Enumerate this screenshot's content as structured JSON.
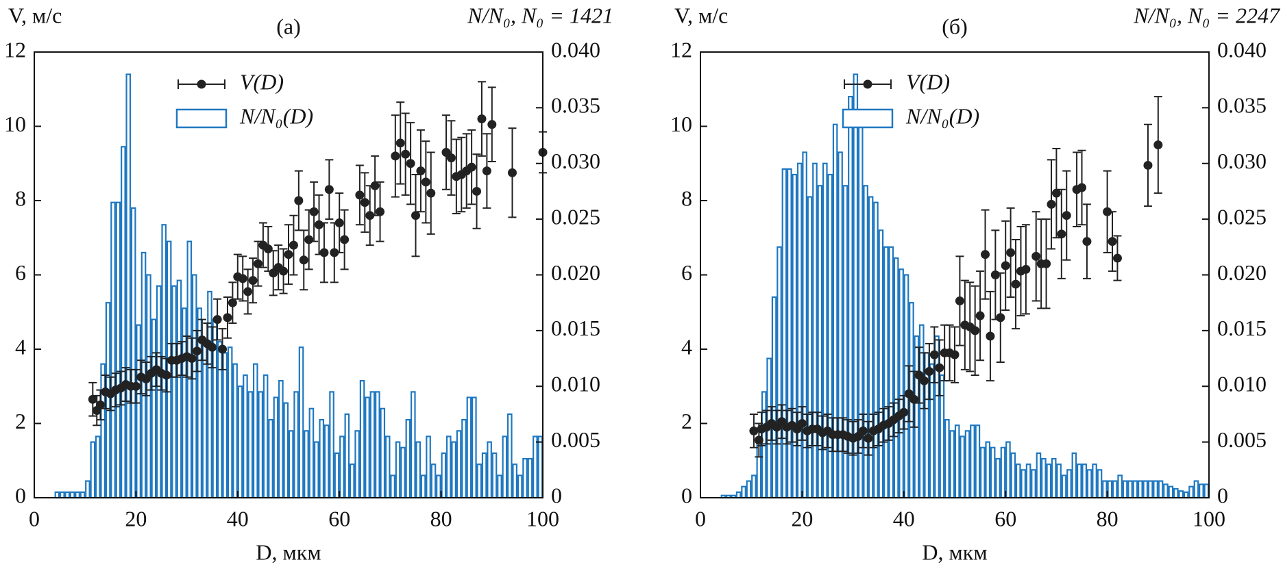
{
  "chart_data": [
    {
      "type": "combo",
      "title": "(а)",
      "annotation": "N/N₀, N₀ = 1421",
      "ylabel": "V, м/с",
      "xlabel": "D, мкм",
      "xlim": [
        0,
        100
      ],
      "xticks": [
        0,
        20,
        40,
        60,
        80,
        100
      ],
      "ylim": [
        0,
        12
      ],
      "yticks": [
        0,
        2,
        4,
        6,
        8,
        10,
        12
      ],
      "y2lim": [
        0,
        0.04
      ],
      "y2ticks": [
        0,
        0.005,
        {
          "value": 0.01,
          "label": "0.010"
        },
        0.015,
        {
          "value": 0.02,
          "label": "0.020"
        },
        0.025,
        {
          "value": 0.03,
          "label": "0.030"
        },
        0.035,
        {
          "value": 0.04,
          "label": "0.040"
        }
      ],
      "series": [
        {
          "name": "V(D)",
          "type": "errorbar",
          "color": "#222222",
          "x": [
            11.5,
            12.3,
            13,
            14,
            15,
            16,
            17,
            18,
            19,
            20,
            21,
            22,
            23,
            24,
            25,
            26,
            27,
            28,
            29,
            30,
            31,
            32,
            33,
            34,
            35,
            36,
            37,
            38,
            39,
            40,
            41,
            42,
            43,
            44,
            45,
            46,
            47,
            48,
            49,
            50,
            51,
            52,
            53,
            54,
            55,
            56,
            57,
            58,
            59,
            60,
            61,
            64,
            65,
            66,
            67,
            68,
            71,
            72,
            73,
            74,
            75,
            76,
            77,
            78,
            81,
            82,
            83,
            84,
            85,
            86,
            87,
            88,
            89,
            90,
            94,
            100
          ],
          "values": [
            2.65,
            2.35,
            2.5,
            2.85,
            2.8,
            2.9,
            2.95,
            3.05,
            3.0,
            3.0,
            3.25,
            3.2,
            3.35,
            3.45,
            3.35,
            3.3,
            3.7,
            3.7,
            3.75,
            3.8,
            3.75,
            3.95,
            4.25,
            4.15,
            4.05,
            4.8,
            4.0,
            4.85,
            5.25,
            5.95,
            5.9,
            5.55,
            5.85,
            6.3,
            6.8,
            6.7,
            6.05,
            6.2,
            6.1,
            6.55,
            6.8,
            8.0,
            6.4,
            6.95,
            7.7,
            7.35,
            6.6,
            8.3,
            6.6,
            7.4,
            6.95,
            8.15,
            7.95,
            7.6,
            8.4,
            7.7,
            9.2,
            9.55,
            9.25,
            9.0,
            7.6,
            8.8,
            8.5,
            8.2,
            9.3,
            9.15,
            8.65,
            8.7,
            8.8,
            8.9,
            8.25,
            10.2,
            8.8,
            10.05,
            8.75,
            9.3
          ],
          "errors": [
            0.45,
            0.4,
            0.4,
            0.45,
            0.45,
            0.45,
            0.45,
            0.45,
            0.45,
            0.45,
            0.45,
            0.45,
            0.45,
            0.45,
            0.45,
            0.45,
            0.45,
            0.45,
            0.45,
            0.55,
            0.55,
            0.55,
            0.55,
            0.55,
            0.55,
            0.55,
            0.55,
            0.55,
            0.55,
            0.6,
            0.6,
            0.6,
            0.6,
            0.6,
            0.6,
            0.6,
            0.6,
            0.6,
            0.6,
            0.8,
            0.8,
            0.8,
            0.8,
            0.8,
            0.8,
            0.8,
            0.8,
            0.8,
            0.8,
            0.8,
            0.8,
            0.8,
            0.8,
            0.8,
            0.8,
            0.8,
            1.1,
            1.1,
            1.1,
            1.1,
            1.1,
            1.1,
            1.1,
            1.1,
            1.0,
            1.0,
            1.0,
            1.0,
            1.0,
            1.0,
            1.0,
            1.0,
            1.0,
            1.0,
            1.2,
            0.55
          ]
        },
        {
          "name": "N/N₀(D)",
          "type": "histogram",
          "axis": "y2",
          "color": "#1f78c1",
          "bins": [
            4,
            5,
            6,
            7,
            8,
            9,
            10,
            11,
            12,
            13,
            14,
            15,
            16,
            17,
            18,
            19,
            20,
            21,
            22,
            23,
            24,
            25,
            26,
            27,
            28,
            29,
            30,
            31,
            32,
            33,
            34,
            35,
            36,
            37,
            38,
            39,
            40,
            41,
            42,
            43,
            44,
            45,
            46,
            47,
            48,
            49,
            50,
            51,
            52,
            53,
            54,
            55,
            56,
            57,
            58,
            59,
            60,
            61,
            62,
            63,
            64,
            65,
            66,
            67,
            68,
            69,
            70,
            71,
            72,
            73,
            74,
            75,
            76,
            77,
            78,
            79,
            80,
            81,
            82,
            83,
            84,
            85,
            86,
            87,
            88,
            89,
            90,
            91,
            92,
            93,
            94,
            95,
            96,
            97,
            98,
            99,
            100
          ],
          "values": [
            0.0005,
            0.0005,
            0.0005,
            0.0005,
            0.0005,
            0.0005,
            0.0015,
            0.005,
            0.0055,
            0.012,
            0.0175,
            0.0265,
            0.0265,
            0.0315,
            0.038,
            0.026,
            0.0155,
            0.022,
            0.02,
            0.016,
            0.019,
            0.0245,
            0.023,
            0.019,
            0.0195,
            0.017,
            0.023,
            0.02,
            0.017,
            0.014,
            0.0185,
            0.016,
            0.014,
            0.013,
            0.0135,
            0.012,
            0.01,
            0.011,
            0.0095,
            0.012,
            0.0095,
            0.011,
            0.007,
            0.009,
            0.0105,
            0.0085,
            0.006,
            0.0095,
            0.0135,
            0.006,
            0.008,
            0.005,
            0.007,
            0.0065,
            0.0095,
            0.004,
            0.0055,
            0.0075,
            0.003,
            0.006,
            0.0105,
            0.009,
            0.0095,
            0.0095,
            0.008,
            0.0055,
            0.002,
            0.005,
            0.0045,
            0.007,
            0.0095,
            0.005,
            0.002,
            0.0055,
            0.003,
            0.002,
            0.004,
            0.0055,
            0.005,
            0.006,
            0.007,
            0.009,
            0.009,
            0.003,
            0.004,
            0.005,
            0.004,
            0.002,
            0.0055,
            0.0075,
            0.003,
            0.002,
            0.0035,
            0.0035,
            0.0055,
            0.0055
          ]
        }
      ]
    },
    {
      "type": "combo",
      "title": "(б)",
      "annotation": "N/N₀, N₀ = 2247",
      "ylabel": "V, м/с",
      "xlabel": "D, мкм",
      "xlim": [
        0,
        100
      ],
      "xticks": [
        0,
        20,
        40,
        60,
        80,
        100
      ],
      "ylim": [
        0,
        12
      ],
      "yticks": [
        0,
        2,
        4,
        6,
        8,
        10,
        12
      ],
      "y2lim": [
        0,
        0.04
      ],
      "y2ticks": [
        0,
        0.005,
        {
          "value": 0.01,
          "label": "0.010"
        },
        0.015,
        {
          "value": 0.02,
          "label": "0.020"
        },
        0.025,
        {
          "value": 0.03,
          "label": "0.030"
        },
        0.035,
        {
          "value": 0.04,
          "label": "0.040"
        }
      ],
      "series": [
        {
          "name": "V(D)",
          "type": "errorbar",
          "color": "#222222",
          "x": [
            10.5,
            11.5,
            12,
            13,
            14,
            15,
            16,
            17,
            18,
            19,
            20,
            21,
            22,
            23,
            24,
            25,
            26,
            27,
            28,
            29,
            30,
            31,
            32,
            33,
            34,
            35,
            36,
            37,
            38,
            39,
            40,
            41,
            42,
            43,
            44,
            45,
            46,
            47,
            48,
            49,
            50,
            51,
            52,
            53,
            54,
            55,
            56,
            57,
            58,
            59,
            60,
            61,
            62,
            63,
            64,
            66,
            67,
            68,
            69,
            70,
            71,
            72,
            74,
            75,
            76,
            80,
            81,
            82,
            88,
            90
          ],
          "values": [
            1.8,
            1.55,
            1.85,
            1.9,
            2.0,
            1.9,
            2.05,
            1.9,
            1.95,
            1.85,
            2.0,
            1.8,
            1.85,
            1.85,
            1.75,
            1.8,
            1.7,
            1.7,
            1.7,
            1.65,
            1.6,
            1.65,
            1.8,
            1.6,
            1.8,
            1.85,
            1.95,
            2.0,
            2.1,
            2.2,
            2.3,
            2.8,
            2.65,
            3.3,
            3.15,
            3.4,
            3.85,
            3.5,
            3.9,
            3.9,
            3.85,
            5.3,
            4.65,
            4.6,
            4.5,
            4.9,
            6.55,
            4.35,
            6.0,
            4.85,
            6.25,
            6.6,
            5.75,
            6.1,
            6.15,
            6.5,
            6.3,
            6.3,
            7.9,
            8.2,
            7.1,
            7.6,
            8.3,
            8.35,
            6.9,
            7.7,
            6.9,
            6.45,
            8.95,
            9.5
          ],
          "errors": [
            0.45,
            0.45,
            0.45,
            0.45,
            0.45,
            0.45,
            0.45,
            0.45,
            0.45,
            0.45,
            0.45,
            0.45,
            0.45,
            0.45,
            0.45,
            0.45,
            0.45,
            0.45,
            0.45,
            0.45,
            0.45,
            0.45,
            0.45,
            0.45,
            0.45,
            0.45,
            0.45,
            0.45,
            0.45,
            0.45,
            0.45,
            0.75,
            0.75,
            0.75,
            0.75,
            0.75,
            0.75,
            0.75,
            0.75,
            0.75,
            0.75,
            1.2,
            1.2,
            1.2,
            1.2,
            1.2,
            1.2,
            1.2,
            1.2,
            1.2,
            1.2,
            1.2,
            1.2,
            1.2,
            1.2,
            1.2,
            1.2,
            1.2,
            1.2,
            1.2,
            1.2,
            1.2,
            1.0,
            1.0,
            1.0,
            1.1,
            0.8,
            0.6,
            1.1,
            1.3
          ]
        },
        {
          "name": "N/N₀(D)",
          "type": "histogram",
          "axis": "y2",
          "color": "#1f78c1",
          "bins": [
            4,
            5,
            6,
            7,
            8,
            9,
            10,
            11,
            12,
            13,
            14,
            15,
            16,
            17,
            18,
            19,
            20,
            21,
            22,
            23,
            24,
            25,
            26,
            27,
            28,
            29,
            30,
            31,
            32,
            33,
            34,
            35,
            36,
            37,
            38,
            39,
            40,
            41,
            42,
            43,
            44,
            45,
            46,
            47,
            48,
            49,
            50,
            51,
            52,
            53,
            54,
            55,
            56,
            57,
            58,
            59,
            60,
            61,
            62,
            63,
            64,
            65,
            66,
            67,
            68,
            69,
            70,
            71,
            72,
            73,
            74,
            75,
            76,
            77,
            78,
            79,
            80,
            81,
            82,
            83,
            84,
            85,
            86,
            87,
            88,
            89,
            90,
            91,
            92,
            93,
            94,
            95,
            96,
            97,
            98,
            99,
            100
          ],
          "values": [
            0.0002,
            0.0002,
            0.0002,
            0.0005,
            0.001,
            0.0015,
            0.002,
            0.005,
            0.0095,
            0.0125,
            0.018,
            0.0225,
            0.0295,
            0.0295,
            0.029,
            0.03,
            0.031,
            0.027,
            0.03,
            0.028,
            0.03,
            0.029,
            0.0335,
            0.031,
            0.028,
            0.036,
            0.038,
            0.034,
            0.028,
            0.027,
            0.0265,
            0.024,
            0.0225,
            0.0225,
            0.0215,
            0.0205,
            0.02,
            0.0175,
            0.0145,
            0.0155,
            0.013,
            0.012,
            0.0145,
            0.011,
            0.007,
            0.006,
            0.0065,
            0.0055,
            0.006,
            0.0065,
            0.0065,
            0.0045,
            0.005,
            0.0045,
            0.0035,
            0.0045,
            0.005,
            0.004,
            0.003,
            0.0025,
            0.003,
            0.0025,
            0.004,
            0.0035,
            0.003,
            0.0035,
            0.003,
            0.002,
            0.0025,
            0.004,
            0.003,
            0.003,
            0.0025,
            0.003,
            0.0025,
            0.0015,
            0.0015,
            0.0015,
            0.002,
            0.0015,
            0.0015,
            0.0015,
            0.0015,
            0.0015,
            0.0015,
            0.0015,
            0.0015,
            0.0012,
            0.001,
            0.0008,
            0.0006,
            0.0005,
            0.001,
            0.0015,
            0.0012,
            0.0012
          ]
        }
      ]
    }
  ]
}
